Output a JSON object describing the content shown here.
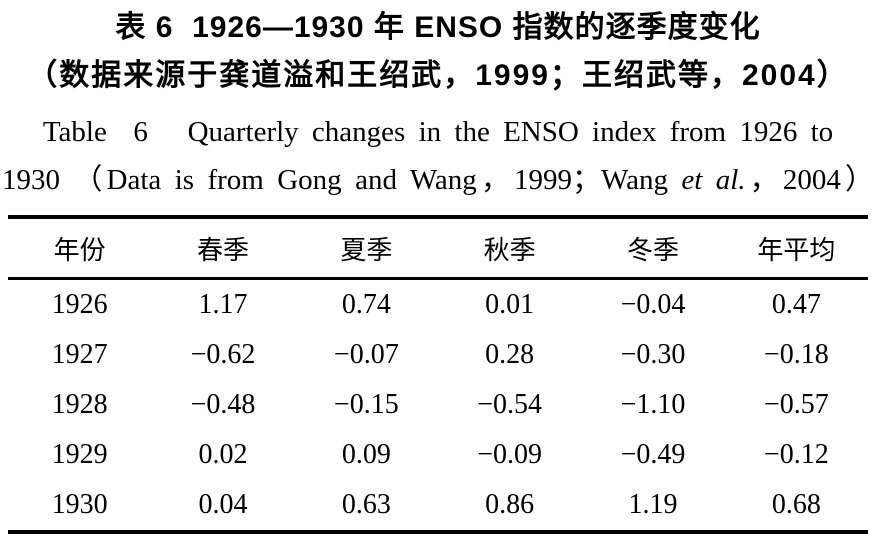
{
  "caption": {
    "zh_line1": "表 6  1926—1930 年 ENSO 指数的逐季度变化",
    "zh_line2": "（数据来源于龚道溢和王绍武，1999；王绍武等，2004）",
    "en_line1": "Table  6   Quarterly changes in the ENSO index from 1926 to",
    "en_line2_pre": "1930 （Data is from Gong and Wang，1999；Wang ",
    "en_line2_italic": "et al.",
    "en_line2_post": "，2004）"
  },
  "table": {
    "headers": [
      "年份",
      "春季",
      "夏季",
      "秋季",
      "冬季",
      "年平均"
    ],
    "rows": [
      [
        "1926",
        "1.17",
        "0.74",
        "0.01",
        "−0.04",
        "0.47"
      ],
      [
        "1927",
        "−0.62",
        "−0.07",
        "0.28",
        "−0.30",
        "−0.18"
      ],
      [
        "1928",
        "−0.48",
        "−0.15",
        "−0.54",
        "−1.10",
        "−0.57"
      ],
      [
        "1929",
        "0.02",
        "0.09",
        "−0.09",
        "−0.49",
        "−0.12"
      ],
      [
        "1930",
        "0.04",
        "0.63",
        "0.86",
        "1.19",
        "0.68"
      ]
    ]
  },
  "chart_data": {
    "type": "table",
    "title": "表 6 1926—1930 年 ENSO 指数的逐季度变化 / Table 6 Quarterly changes in the ENSO index from 1926 to 1930",
    "source_note": "数据来源于龚道溢和王绍武，1999；王绍武等，2004 (Data is from Gong and Wang, 1999; Wang et al., 2004)",
    "categories": [
      "年份",
      "春季",
      "夏季",
      "秋季",
      "冬季",
      "年平均"
    ],
    "rows": [
      [
        1926,
        1.17,
        0.74,
        0.01,
        -0.04,
        0.47
      ],
      [
        1927,
        -0.62,
        -0.07,
        0.28,
        -0.3,
        -0.18
      ],
      [
        1928,
        -0.48,
        -0.15,
        -0.54,
        -1.1,
        -0.57
      ],
      [
        1929,
        0.02,
        0.09,
        -0.09,
        -0.49,
        -0.12
      ],
      [
        1930,
        0.04,
        0.63,
        0.86,
        1.19,
        0.68
      ]
    ]
  },
  "colors": {
    "text": "#000000",
    "background": "#ffffff",
    "table_rule": "#000000"
  }
}
